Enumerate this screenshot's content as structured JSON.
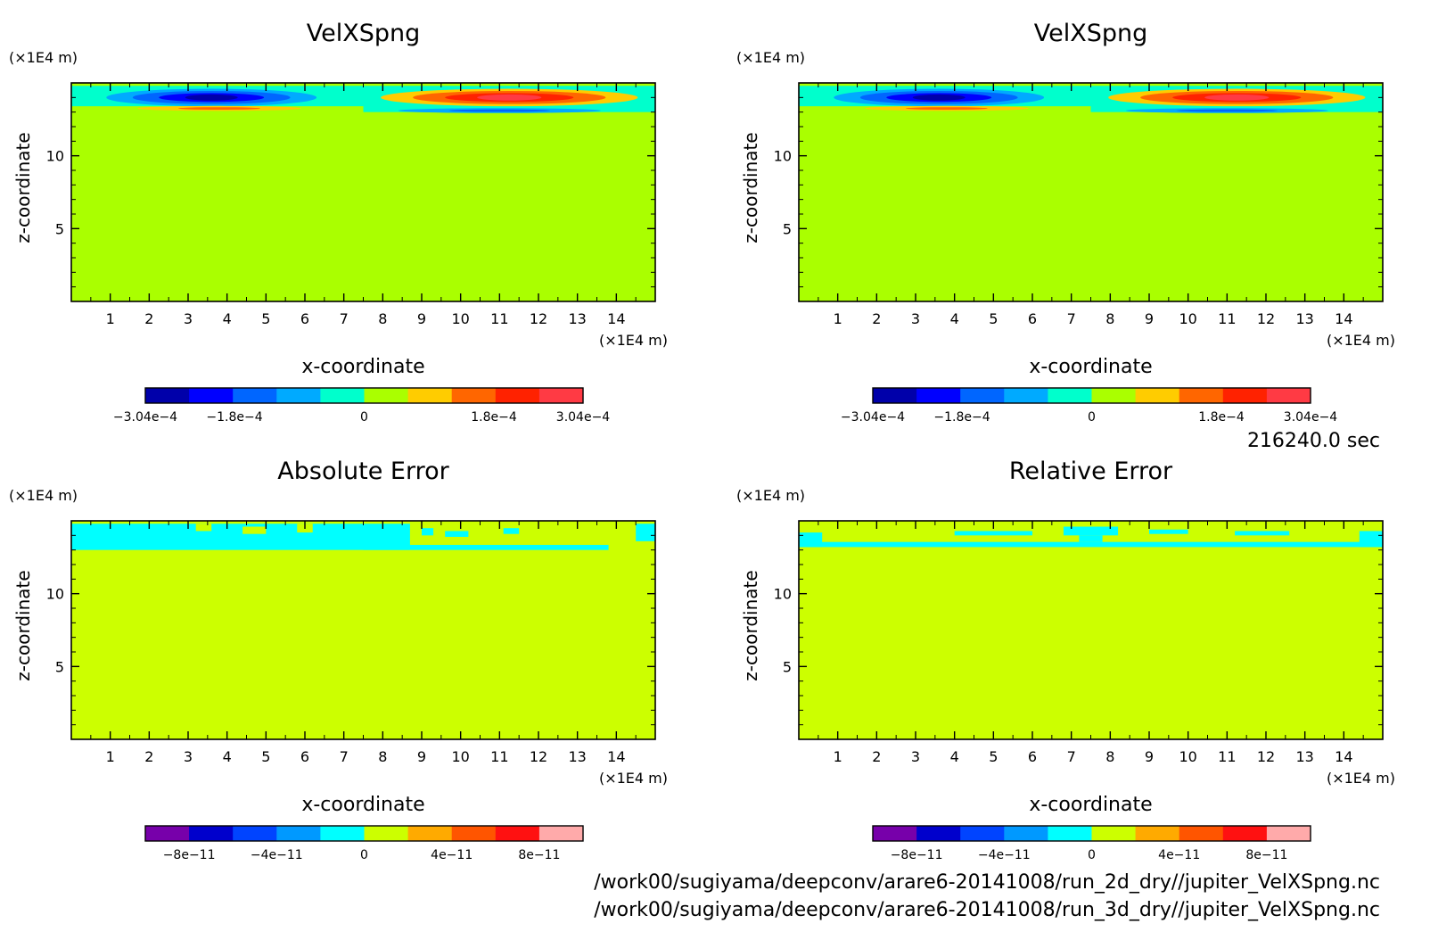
{
  "time_label": "216240.0 sec",
  "files": [
    "/work00/sugiyama/deepconv/arare6-20141008/run_2d_dry//jupiter_VelXSpng.nc",
    "/work00/sugiyama/deepconv/arare6-20141008/run_3d_dry//jupiter_VelXSpng.nc"
  ],
  "chart_data": [
    {
      "type": "heatmap",
      "title": "VelXSpng",
      "xlabel": "x-coordinate",
      "ylabel": "z-coordinate",
      "x_unit": "(×1E4 m)",
      "y_unit": "(×1E4 m)",
      "xlim": [
        0,
        15
      ],
      "ylim": [
        0,
        15
      ],
      "x_ticks": [
        1,
        2,
        3,
        4,
        5,
        6,
        7,
        8,
        9,
        10,
        11,
        12,
        13,
        14
      ],
      "y_ticks": [
        5,
        10
      ],
      "background_color": "#aaff00",
      "colorbar": {
        "colors": [
          "#0000aa",
          "#0000ff",
          "#0066ff",
          "#00aaff",
          "#00ffcc",
          "#aaff00",
          "#ffcc00",
          "#ff6600",
          "#ff2200",
          "#ff3a44"
        ],
        "tick_labels": [
          {
            "pos": 0.0,
            "text": "−3.04e−4"
          },
          {
            "pos": 0.2037,
            "text": "−1.8e−4"
          },
          {
            "pos": 0.5,
            "text": "0"
          },
          {
            "pos": 0.7963,
            "text": "1.8e−4"
          },
          {
            "pos": 1.0,
            "text": "3.04e−4"
          }
        ]
      },
      "features": [
        {
          "kind": "band",
          "x0": 0,
          "x1": 7.5,
          "z0": 13.4,
          "z1": 14.8,
          "color": "#00ffcc"
        },
        {
          "kind": "band",
          "x0": 7.5,
          "x1": 15,
          "z0": 13.0,
          "z1": 14.8,
          "color": "#00ffcc"
        },
        {
          "kind": "ellipse",
          "cx": 3.6,
          "cz": 14.0,
          "rx": 2.7,
          "rz": 0.6,
          "colors": [
            "#00aaff",
            "#0066ff",
            "#0000ff",
            "#0000aa"
          ]
        },
        {
          "kind": "ellipse",
          "cx": 3.8,
          "cz": 13.25,
          "rx": 2.1,
          "rz": 0.17,
          "colors": [
            "#ffcc00",
            "#ff6600"
          ]
        },
        {
          "kind": "ellipse",
          "cx": 11.25,
          "cz": 14.0,
          "rx": 3.3,
          "rz": 0.6,
          "colors": [
            "#ffcc00",
            "#ff6600",
            "#ff2200",
            "#ff3a44"
          ]
        },
        {
          "kind": "ellipse",
          "cx": 11.0,
          "cz": 13.1,
          "rx": 2.6,
          "rz": 0.17,
          "colors": [
            "#00aaff",
            "#0066ff"
          ]
        }
      ]
    },
    {
      "type": "heatmap",
      "title": "VelXSpng",
      "xlabel": "x-coordinate",
      "ylabel": "z-coordinate",
      "x_unit": "(×1E4 m)",
      "y_unit": "(×1E4 m)",
      "xlim": [
        0,
        15
      ],
      "ylim": [
        0,
        15
      ],
      "x_ticks": [
        1,
        2,
        3,
        4,
        5,
        6,
        7,
        8,
        9,
        10,
        11,
        12,
        13,
        14
      ],
      "y_ticks": [
        5,
        10
      ],
      "background_color": "#aaff00",
      "colorbar": {
        "colors": [
          "#0000aa",
          "#0000ff",
          "#0066ff",
          "#00aaff",
          "#00ffcc",
          "#aaff00",
          "#ffcc00",
          "#ff6600",
          "#ff2200",
          "#ff3a44"
        ],
        "tick_labels": [
          {
            "pos": 0.0,
            "text": "−3.04e−4"
          },
          {
            "pos": 0.2037,
            "text": "−1.8e−4"
          },
          {
            "pos": 0.5,
            "text": "0"
          },
          {
            "pos": 0.7963,
            "text": "1.8e−4"
          },
          {
            "pos": 1.0,
            "text": "3.04e−4"
          }
        ]
      },
      "features": [
        {
          "kind": "band",
          "x0": 0,
          "x1": 7.5,
          "z0": 13.4,
          "z1": 14.8,
          "color": "#00ffcc"
        },
        {
          "kind": "band",
          "x0": 7.5,
          "x1": 15,
          "z0": 13.0,
          "z1": 14.8,
          "color": "#00ffcc"
        },
        {
          "kind": "ellipse",
          "cx": 3.6,
          "cz": 14.0,
          "rx": 2.7,
          "rz": 0.6,
          "colors": [
            "#00aaff",
            "#0066ff",
            "#0000ff",
            "#0000aa"
          ]
        },
        {
          "kind": "ellipse",
          "cx": 3.8,
          "cz": 13.25,
          "rx": 2.1,
          "rz": 0.17,
          "colors": [
            "#ffcc00",
            "#ff6600"
          ]
        },
        {
          "kind": "ellipse",
          "cx": 11.25,
          "cz": 14.0,
          "rx": 3.3,
          "rz": 0.6,
          "colors": [
            "#ffcc00",
            "#ff6600",
            "#ff2200",
            "#ff3a44"
          ]
        },
        {
          "kind": "ellipse",
          "cx": 11.0,
          "cz": 13.1,
          "rx": 2.6,
          "rz": 0.17,
          "colors": [
            "#00aaff",
            "#0066ff"
          ]
        }
      ]
    },
    {
      "type": "heatmap",
      "title": "Absolute Error",
      "xlabel": "x-coordinate",
      "ylabel": "z-coordinate",
      "x_unit": "(×1E4 m)",
      "y_unit": "(×1E4 m)",
      "xlim": [
        0,
        15
      ],
      "ylim": [
        0,
        15
      ],
      "x_ticks": [
        1,
        2,
        3,
        4,
        5,
        6,
        7,
        8,
        9,
        10,
        11,
        12,
        13,
        14
      ],
      "y_ticks": [
        5,
        10
      ],
      "background_color": "#ccff00",
      "colorbar": {
        "colors": [
          "#7700aa",
          "#0000cc",
          "#0044ff",
          "#0099ff",
          "#00ffff",
          "#ccff00",
          "#ffaa00",
          "#ff5500",
          "#ff1111",
          "#ffaaaa"
        ],
        "tick_labels": [
          {
            "pos": 0.1,
            "text": "−8e−11"
          },
          {
            "pos": 0.3,
            "text": "−4e−11"
          },
          {
            "pos": 0.5,
            "text": "0"
          },
          {
            "pos": 0.7,
            "text": "4e−11"
          },
          {
            "pos": 0.9,
            "text": "8e−11"
          }
        ]
      },
      "features": [
        {
          "kind": "band",
          "x0": 0,
          "x1": 7.5,
          "z0": 13.0,
          "z1": 14.8,
          "color": "#00ffff"
        },
        {
          "kind": "band",
          "x0": 7.5,
          "x1": 13.8,
          "z0": 13.0,
          "z1": 13.35,
          "color": "#00ffff"
        },
        {
          "kind": "band",
          "x0": 7.5,
          "x1": 8.7,
          "z0": 13.0,
          "z1": 14.8,
          "color": "#00ffff"
        },
        {
          "kind": "band",
          "x0": 14.5,
          "x1": 15,
          "z0": 13.6,
          "z1": 14.8,
          "color": "#00ffff"
        },
        {
          "kind": "band",
          "x0": 3.2,
          "x1": 3.6,
          "z0": 14.3,
          "z1": 14.8,
          "color": "#ccff00"
        },
        {
          "kind": "band",
          "x0": 4.4,
          "x1": 5.0,
          "z0": 14.1,
          "z1": 14.6,
          "color": "#ccff00"
        },
        {
          "kind": "band",
          "x0": 5.8,
          "x1": 6.2,
          "z0": 14.2,
          "z1": 14.8,
          "color": "#ccff00"
        },
        {
          "kind": "band",
          "x0": 9.0,
          "x1": 9.3,
          "z0": 14.0,
          "z1": 14.5,
          "color": "#00ffff"
        },
        {
          "kind": "band",
          "x0": 9.6,
          "x1": 10.2,
          "z0": 13.9,
          "z1": 14.3,
          "color": "#00ffff"
        },
        {
          "kind": "band",
          "x0": 11.1,
          "x1": 11.5,
          "z0": 14.1,
          "z1": 14.5,
          "color": "#00ffff"
        }
      ]
    },
    {
      "type": "heatmap",
      "title": "Relative Error",
      "xlabel": "x-coordinate",
      "ylabel": "z-coordinate",
      "x_unit": "(×1E4 m)",
      "y_unit": "(×1E4 m)",
      "xlim": [
        0,
        15
      ],
      "ylim": [
        0,
        15
      ],
      "x_ticks": [
        1,
        2,
        3,
        4,
        5,
        6,
        7,
        8,
        9,
        10,
        11,
        12,
        13,
        14
      ],
      "y_ticks": [
        5,
        10
      ],
      "background_color": "#ccff00",
      "colorbar": {
        "colors": [
          "#7700aa",
          "#0000cc",
          "#0044ff",
          "#0099ff",
          "#00ffff",
          "#ccff00",
          "#ffaa00",
          "#ff5500",
          "#ff1111",
          "#ffaaaa"
        ],
        "tick_labels": [
          {
            "pos": 0.1,
            "text": "−8e−11"
          },
          {
            "pos": 0.3,
            "text": "−4e−11"
          },
          {
            "pos": 0.5,
            "text": "0"
          },
          {
            "pos": 0.7,
            "text": "4e−11"
          },
          {
            "pos": 0.9,
            "text": "8e−11"
          }
        ]
      },
      "features": [
        {
          "kind": "band",
          "x0": 0,
          "x1": 15,
          "z0": 13.2,
          "z1": 13.55,
          "color": "#00ffff"
        },
        {
          "kind": "band",
          "x0": 0,
          "x1": 0.6,
          "z0": 13.2,
          "z1": 14.2,
          "color": "#00ffff"
        },
        {
          "kind": "band",
          "x0": 14.4,
          "x1": 15,
          "z0": 13.2,
          "z1": 14.3,
          "color": "#00ffff"
        },
        {
          "kind": "band",
          "x0": 4.0,
          "x1": 6.0,
          "z0": 14.0,
          "z1": 14.3,
          "color": "#00ffff"
        },
        {
          "kind": "band",
          "x0": 6.8,
          "x1": 8.2,
          "z0": 14.0,
          "z1": 14.6,
          "color": "#00ffff"
        },
        {
          "kind": "band",
          "x0": 9.0,
          "x1": 10.0,
          "z0": 14.1,
          "z1": 14.4,
          "color": "#00ffff"
        },
        {
          "kind": "band",
          "x0": 11.2,
          "x1": 12.6,
          "z0": 14.0,
          "z1": 14.3,
          "color": "#00ffff"
        },
        {
          "kind": "band",
          "x0": 7.2,
          "x1": 7.8,
          "z0": 13.55,
          "z1": 14.0,
          "color": "#00ffff"
        }
      ]
    }
  ]
}
